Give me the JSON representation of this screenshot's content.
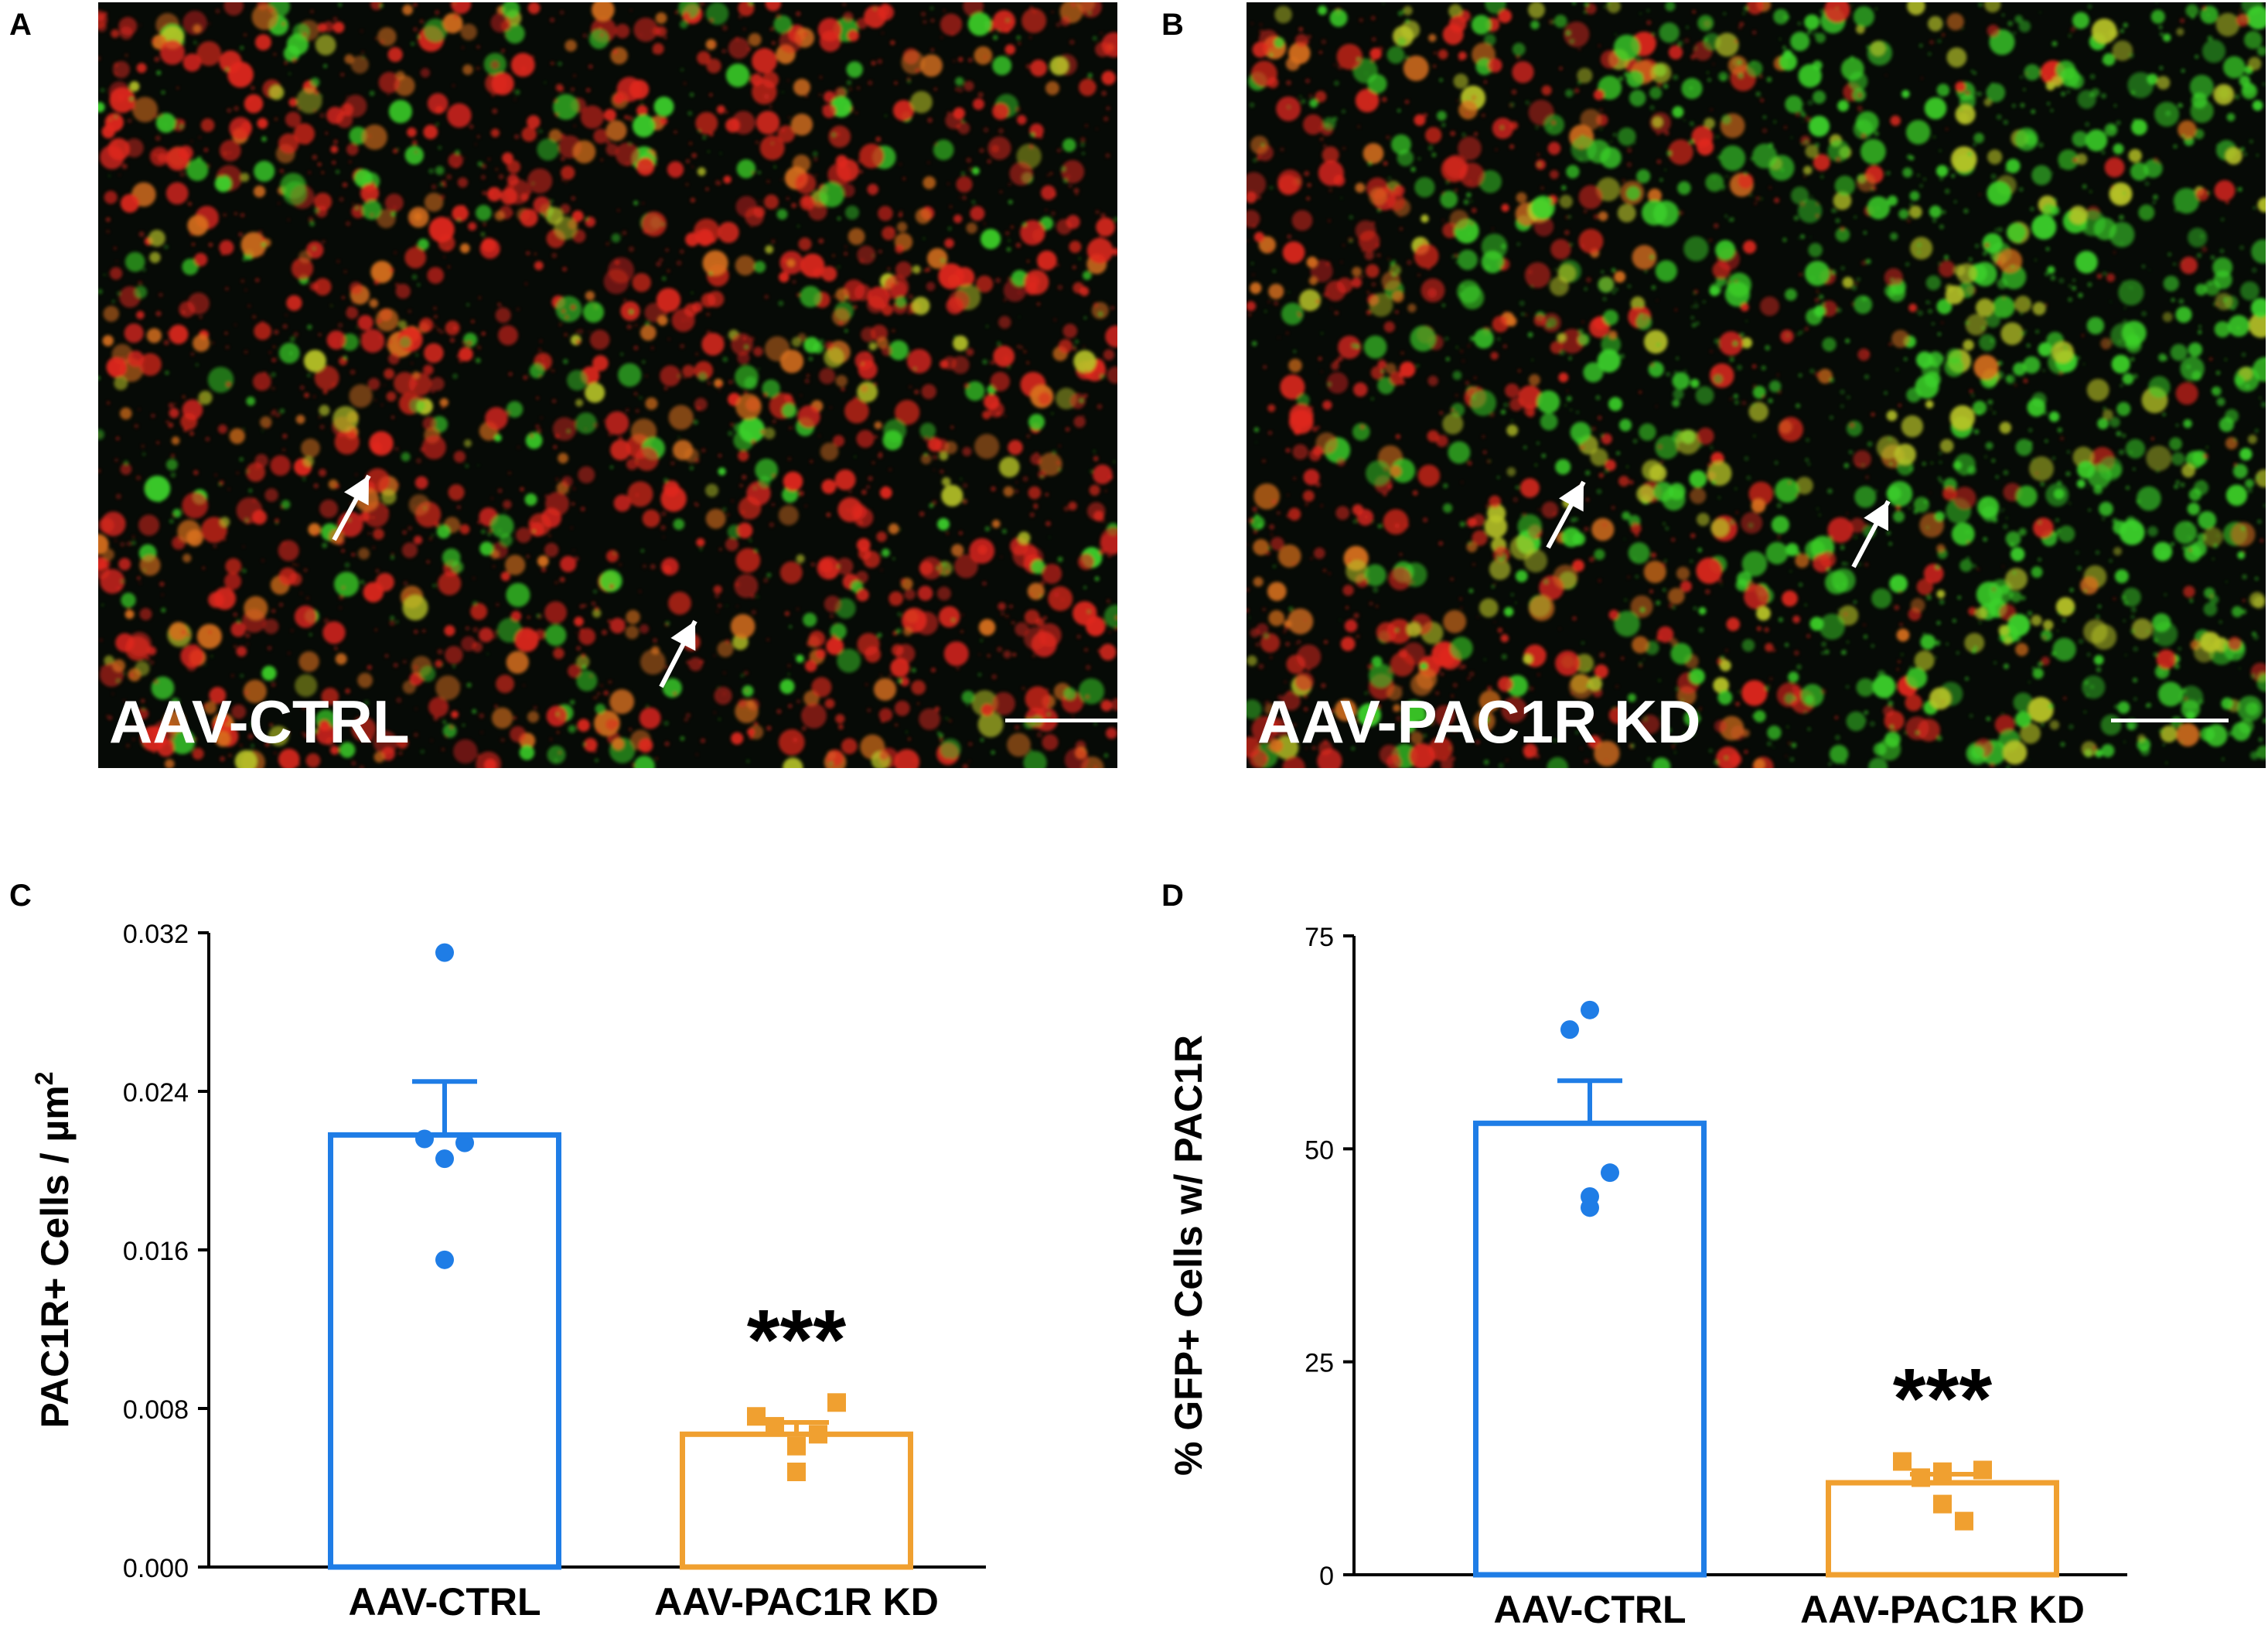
{
  "panels": {
    "A": {
      "letter": "A",
      "label": "AAV-CTRL"
    },
    "B": {
      "letter": "B",
      "label": "AAV-PAC1R KD"
    },
    "C": {
      "letter": "C"
    },
    "D": {
      "letter": "D"
    }
  },
  "colors": {
    "ctrl": "#1f7de6",
    "kd": "#f0a030",
    "red_stain": "#e0281e",
    "green_stain": "#3cd22a"
  },
  "chart_data": [
    {
      "panel": "C",
      "type": "bar",
      "categories": [
        "AAV-CTRL",
        "AAV-PAC1R KD"
      ],
      "values": [
        0.0218,
        0.0067
      ],
      "error": [
        0.0027,
        0.0006
      ],
      "points": [
        [
          0.031,
          0.0216,
          0.0214,
          0.0206,
          0.0155
        ],
        [
          0.0076,
          0.0071,
          0.0083,
          0.0061,
          0.0048,
          0.0067
        ]
      ],
      "xlabel": "",
      "ylabel": "PAC1R+ Cells / µm",
      "ylabel_sup": "2",
      "ylim": [
        0,
        0.032
      ],
      "yticks": [
        "0.000",
        "0.008",
        "0.016",
        "0.024",
        "0.032"
      ],
      "annotation": "***"
    },
    {
      "panel": "D",
      "type": "bar",
      "categories": [
        "AAV-CTRL",
        "AAV-PAC1R KD"
      ],
      "values": [
        53.0,
        10.8
      ],
      "error": [
        5.0,
        1.0
      ],
      "points": [
        [
          66.3,
          64.0,
          47.2,
          44.4,
          43.1
        ],
        [
          13.3,
          11.4,
          12.3,
          12.1,
          8.3,
          6.3
        ]
      ],
      "xlabel": "",
      "ylabel": "% GFP+ Cells w/ PAC1R",
      "ylim": [
        0,
        75
      ],
      "yticks": [
        "0",
        "25",
        "50",
        "75"
      ],
      "annotation": "***"
    }
  ]
}
